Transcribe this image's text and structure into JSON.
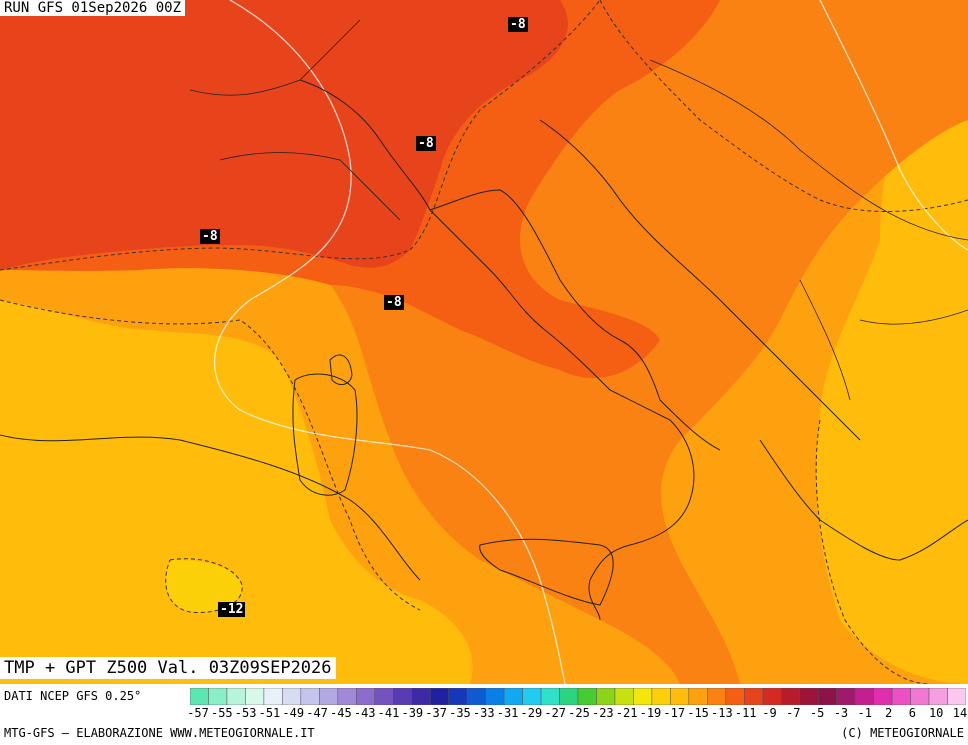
{
  "header": {
    "run_label": "RUN GFS 01Sep2026 00Z"
  },
  "map": {
    "title": "TMP + GPT Z500 Val. 03Z09SEP2026",
    "contour_labels": [
      "-8",
      "-8",
      "-8",
      "-8",
      "-12"
    ],
    "fill_colors": {
      "deep": "#e8441c",
      "dark": "#f45f14",
      "mid": "#fa8212",
      "light": "#fea10e",
      "pale": "#ffbc0a",
      "palest": "#fbd008"
    }
  },
  "legend": {
    "source": "DATI NCEP GFS 0.25°",
    "ticks": [
      "-57",
      "-55",
      "-53",
      "-51",
      "-49",
      "-47",
      "-45",
      "-43",
      "-41",
      "-39",
      "-37",
      "-35",
      "-33",
      "-31",
      "-29",
      "-27",
      "-25",
      "-23",
      "-21",
      "-19",
      "-17",
      "-15",
      "-13",
      "-11",
      "-9",
      "-7",
      "-5",
      "-3",
      "-1",
      "2",
      "6",
      "10",
      "14"
    ],
    "colors": [
      "#5ce6b0",
      "#8aeec8",
      "#b6f4dc",
      "#d8f8ea",
      "#e6f1f8",
      "#d6dcf2",
      "#c4c4ec",
      "#b2a8e2",
      "#a08ad8",
      "#8c6ccc",
      "#7452c0",
      "#5a3cb2",
      "#3c2aa6",
      "#2020a0",
      "#1438b8",
      "#0e5ad0",
      "#0a80e6",
      "#10a8f0",
      "#22ccf0",
      "#30e0c8",
      "#2cd480",
      "#44cc30",
      "#8cd418",
      "#c6e010",
      "#f2e60a",
      "#fbd008",
      "#ffbc0a",
      "#fea10e",
      "#fa8212",
      "#f45f14",
      "#e8441c",
      "#d42a22",
      "#b81c2a",
      "#9c1438",
      "#8c1248",
      "#a01a6c",
      "#c2208e",
      "#de30ac",
      "#ec50c4",
      "#f078d4",
      "#f4a0e0",
      "#f8c8ee"
    ],
    "footer_left": "MTG-GFS — ELABORAZIONE WWW.METEOGIORNALE.IT",
    "footer_right": "(C) METEOGIORNALE"
  }
}
